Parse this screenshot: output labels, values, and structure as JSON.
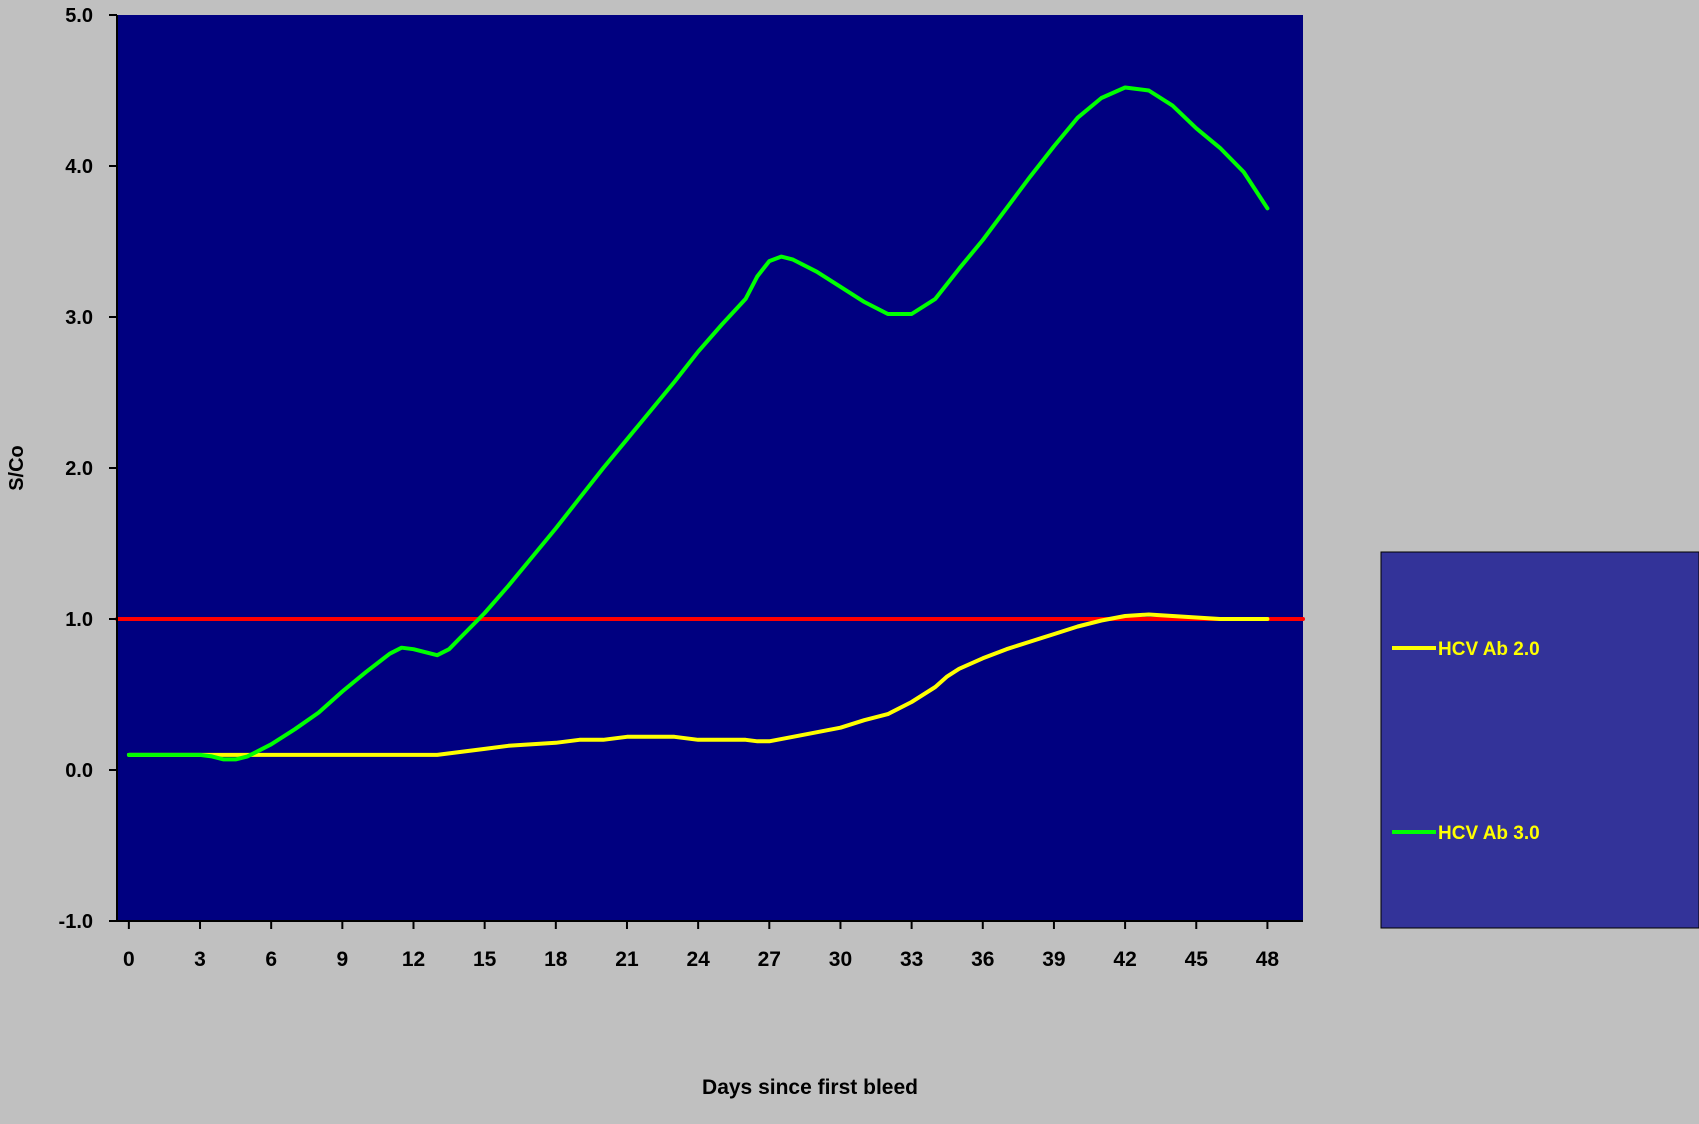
{
  "chart_data": {
    "type": "line",
    "title": "",
    "xlabel": "Days since first bleed",
    "ylabel": "S/Co",
    "xlim": [
      -0.5,
      49.5
    ],
    "ylim": [
      -1.0,
      5.0
    ],
    "x_ticks": [
      0,
      3,
      6,
      9,
      12,
      15,
      18,
      21,
      24,
      27,
      30,
      33,
      36,
      39,
      42,
      45,
      48
    ],
    "y_ticks": [
      -1.0,
      0.0,
      1.0,
      2.0,
      3.0,
      4.0,
      5.0
    ],
    "y_tick_labels": [
      "-1.0",
      "0.0",
      "1.0",
      "2.0",
      "3.0",
      "4.0",
      "5.0"
    ],
    "grid": false,
    "legend_position": "right",
    "colors": {
      "page_background": "#c0c0c0",
      "plot_background": "#000080",
      "legend_background": "#333399",
      "text": "#000000",
      "legend_text": "#ffff00"
    },
    "series": [
      {
        "name": "HCV Ab 2.0",
        "color": "#ffff00",
        "points": [
          [
            0,
            0.1
          ],
          [
            3,
            0.1
          ],
          [
            6,
            0.1
          ],
          [
            9,
            0.1
          ],
          [
            12,
            0.1
          ],
          [
            13,
            0.1
          ],
          [
            14,
            0.12
          ],
          [
            15,
            0.14
          ],
          [
            16,
            0.16
          ],
          [
            18,
            0.18
          ],
          [
            19,
            0.2
          ],
          [
            20,
            0.2
          ],
          [
            21,
            0.22
          ],
          [
            23,
            0.22
          ],
          [
            24,
            0.2
          ],
          [
            26,
            0.2
          ],
          [
            26.5,
            0.19
          ],
          [
            27,
            0.19
          ],
          [
            28,
            0.22
          ],
          [
            30,
            0.28
          ],
          [
            31,
            0.33
          ],
          [
            32,
            0.37
          ],
          [
            33,
            0.45
          ],
          [
            34,
            0.55
          ],
          [
            34.5,
            0.62
          ],
          [
            35,
            0.67
          ],
          [
            36,
            0.74
          ],
          [
            37,
            0.8
          ],
          [
            38,
            0.85
          ],
          [
            39,
            0.9
          ],
          [
            40,
            0.95
          ],
          [
            41,
            0.99
          ],
          [
            42,
            1.02
          ],
          [
            43,
            1.03
          ],
          [
            44,
            1.02
          ],
          [
            45,
            1.01
          ],
          [
            46,
            1.0
          ],
          [
            48,
            1.0
          ]
        ]
      },
      {
        "name": "HCV Ab 3.0",
        "color": "#00ff00",
        "points": [
          [
            0,
            0.1
          ],
          [
            1,
            0.1
          ],
          [
            2,
            0.1
          ],
          [
            3,
            0.1
          ],
          [
            3.5,
            0.09
          ],
          [
            4,
            0.07
          ],
          [
            4.5,
            0.07
          ],
          [
            5,
            0.09
          ],
          [
            6,
            0.17
          ],
          [
            7,
            0.27
          ],
          [
            8,
            0.38
          ],
          [
            9,
            0.52
          ],
          [
            10,
            0.65
          ],
          [
            11,
            0.77
          ],
          [
            11.5,
            0.81
          ],
          [
            12,
            0.8
          ],
          [
            13,
            0.76
          ],
          [
            13.5,
            0.8
          ],
          [
            14,
            0.88
          ],
          [
            15,
            1.04
          ],
          [
            16,
            1.22
          ],
          [
            17,
            1.41
          ],
          [
            18,
            1.6
          ],
          [
            19,
            1.8
          ],
          [
            20,
            2.0
          ],
          [
            21,
            2.19
          ],
          [
            22,
            2.38
          ],
          [
            23,
            2.57
          ],
          [
            24,
            2.77
          ],
          [
            25,
            2.95
          ],
          [
            26,
            3.12
          ],
          [
            26.5,
            3.27
          ],
          [
            27,
            3.37
          ],
          [
            27.5,
            3.4
          ],
          [
            28,
            3.38
          ],
          [
            29,
            3.3
          ],
          [
            30,
            3.2
          ],
          [
            31,
            3.1
          ],
          [
            32,
            3.02
          ],
          [
            33,
            3.02
          ],
          [
            34,
            3.12
          ],
          [
            35,
            3.32
          ],
          [
            36,
            3.51
          ],
          [
            37,
            3.72
          ],
          [
            38,
            3.93
          ],
          [
            39,
            4.13
          ],
          [
            40,
            4.32
          ],
          [
            41,
            4.45
          ],
          [
            42,
            4.52
          ],
          [
            43,
            4.5
          ],
          [
            44,
            4.4
          ],
          [
            45,
            4.25
          ],
          [
            46,
            4.12
          ],
          [
            47,
            3.96
          ],
          [
            48,
            3.72
          ]
        ]
      },
      {
        "name": "",
        "color": "#ff0000",
        "points": [
          [
            -0.5,
            1.0
          ],
          [
            49.5,
            1.0
          ]
        ]
      }
    ]
  }
}
